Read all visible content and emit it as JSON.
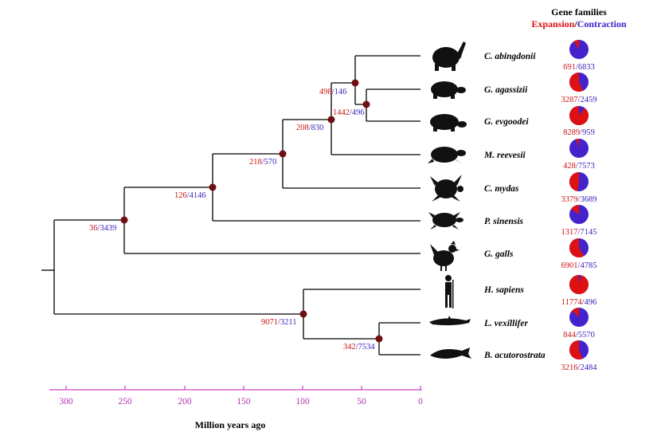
{
  "header": {
    "title": "Gene families",
    "expansion": "Expansion",
    "sep": "/",
    "contraction": "Contraction"
  },
  "colors": {
    "expansion": "#dd1111",
    "contraction": "#4422cc",
    "node": "#6e0f14",
    "axis": "#cc44cc"
  },
  "axis": {
    "label": "Million years ago",
    "ticks": [
      "300",
      "250",
      "200",
      "150",
      "100",
      "50",
      "0"
    ]
  },
  "taxa": [
    {
      "name": "C. abingdonii",
      "silhouette": "tortoise-icon",
      "expansion": "691",
      "contraction": "6833",
      "exp_frac": 0.092
    },
    {
      "name": "G. agassizii",
      "silhouette": "desert-tortoise-icon",
      "expansion": "3287",
      "contraction": "2459",
      "exp_frac": 0.572
    },
    {
      "name": "G. evgoodei",
      "silhouette": "tortoise-icon",
      "expansion": "8289",
      "contraction": "959",
      "exp_frac": 0.896
    },
    {
      "name": "M. reevesii",
      "silhouette": "turtle-icon",
      "expansion": "428",
      "contraction": "7573",
      "exp_frac": 0.053
    },
    {
      "name": "C. mydas",
      "silhouette": "sea-turtle-icon",
      "expansion": "3379",
      "contraction": "3689",
      "exp_frac": 0.478
    },
    {
      "name": "P. sinensis",
      "silhouette": "softshell-turtle-icon",
      "expansion": "1317",
      "contraction": "7145",
      "exp_frac": 0.156
    },
    {
      "name": "G. galls",
      "silhouette": "chicken-icon",
      "expansion": "6901",
      "contraction": "4785",
      "exp_frac": 0.591
    },
    {
      "name": "H. sapiens",
      "silhouette": "human-icon",
      "expansion": "11774",
      "contraction": "496",
      "exp_frac": 0.96
    },
    {
      "name": "L. vexillifer",
      "silhouette": "dolphin-icon",
      "expansion": "844",
      "contraction": "5570",
      "exp_frac": 0.132
    },
    {
      "name": "B. acutorostrata",
      "silhouette": "whale-icon",
      "expansion": "3216",
      "contraction": "2484",
      "exp_frac": 0.564
    }
  ],
  "nodes": [
    {
      "id": "n1",
      "expansion": "36",
      "contraction": "3439"
    },
    {
      "id": "n2",
      "expansion": "126",
      "contraction": "4146"
    },
    {
      "id": "n3",
      "expansion": "218",
      "contraction": "570"
    },
    {
      "id": "n4",
      "expansion": "208",
      "contraction": "830"
    },
    {
      "id": "n5",
      "expansion": "498",
      "contraction": "146"
    },
    {
      "id": "n6",
      "expansion": "1442",
      "contraction": "496"
    },
    {
      "id": "n7",
      "expansion": "9071",
      "contraction": "3211"
    },
    {
      "id": "n8",
      "expansion": "342",
      "contraction": "7534"
    }
  ]
}
